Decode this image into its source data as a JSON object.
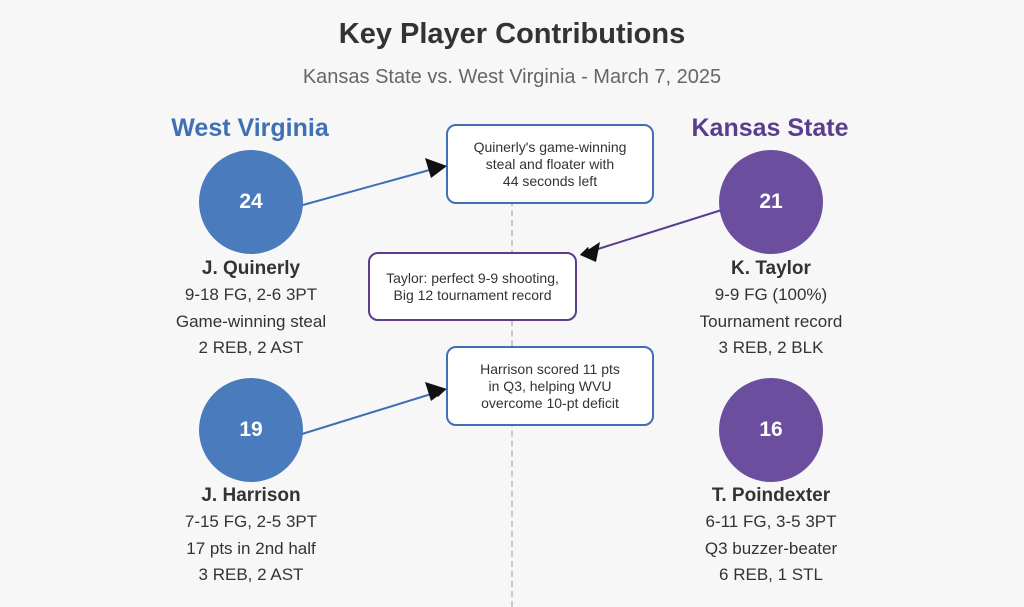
{
  "title": "Key Player Contributions",
  "subtitle": "Kansas State vs. West Virginia - March 7, 2025",
  "teams": {
    "west_virginia": {
      "name": "West Virginia",
      "color": "#3f6fb5"
    },
    "kansas_state": {
      "name": "Kansas State",
      "color": "#5b3d8e"
    }
  },
  "players": [
    {
      "team": "West Virginia",
      "number": "24",
      "name": "J. Quinerly",
      "stats": [
        "9-18 FG, 2-6 3PT",
        "Game-winning steal",
        "2 REB, 2 AST"
      ]
    },
    {
      "team": "West Virginia",
      "number": "19",
      "name": "J. Harrison",
      "stats": [
        "7-15 FG, 2-5 3PT",
        "17 pts in 2nd half",
        "3 REB, 2 AST"
      ]
    },
    {
      "team": "Kansas State",
      "number": "21",
      "name": "K. Taylor",
      "stats": [
        "9-9 FG (100%)",
        "Tournament record",
        "3 REB, 2 BLK"
      ]
    },
    {
      "team": "Kansas State",
      "number": "16",
      "name": "T. Poindexter",
      "stats": [
        "6-11 FG, 3-5 3PT",
        "Q3 buzzer-beater",
        "6 REB, 1 STL"
      ]
    }
  ],
  "callouts": [
    {
      "player": "J. Quinerly",
      "lines": [
        "Quinerly's game-winning",
        "steal and floater with",
        "44 seconds left"
      ]
    },
    {
      "player": "K. Taylor",
      "lines": [
        "Taylor: perfect 9-9 shooting,",
        "Big 12 tournament record"
      ]
    },
    {
      "player": "J. Harrison",
      "lines": [
        "Harrison scored 11 pts",
        "in Q3, helping WVU",
        "overcome 10-pt deficit"
      ]
    }
  ]
}
